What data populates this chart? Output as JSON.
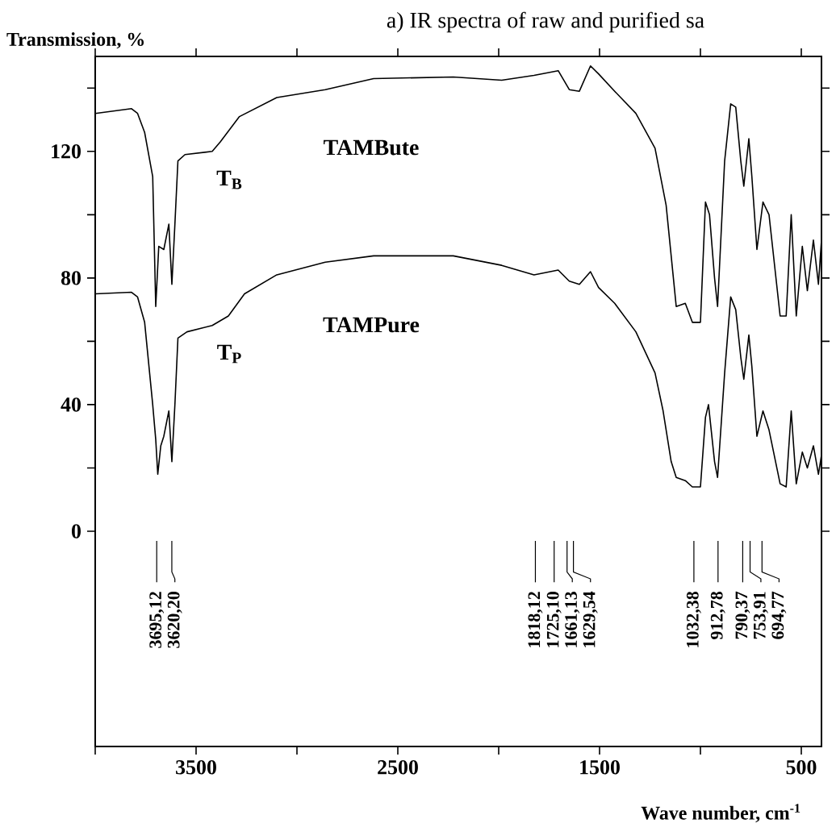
{
  "chart_data": {
    "type": "line",
    "title": "a) IR spectra of raw and purified sa",
    "ylabel": "Transmission, %",
    "xlabel": "Wave number, cm$^{-1}$",
    "xlim": [
      4000,
      400
    ],
    "ylim": [
      -68,
      150
    ],
    "xticks": [
      {
        "value": 4000,
        "label": null
      },
      3500,
      {
        "value": 3000,
        "label": null
      },
      2500,
      {
        "value": 2000,
        "label": null
      },
      1500,
      {
        "value": 1000,
        "label": null
      },
      500
    ],
    "yticks": [
      0,
      {
        "value": 20,
        "label": null
      },
      40,
      {
        "value": 60,
        "label": null
      },
      80,
      {
        "value": 100,
        "label": null
      },
      120,
      {
        "value": 140,
        "label": null
      }
    ],
    "series": [
      {
        "name": "TAMBute",
        "color": "#000000",
        "x": [
          4000,
          3820,
          3790,
          3755,
          3715,
          3700,
          3685,
          3660,
          3635,
          3620,
          3605,
          3590,
          3555,
          3420,
          3380,
          3285,
          3100,
          2860,
          2620,
          2225,
          1985,
          1825,
          1705,
          1650,
          1600,
          1545,
          1505,
          1425,
          1320,
          1225,
          1170,
          1145,
          1120,
          1075,
          1040,
          1000,
          975,
          955,
          930,
          915,
          880,
          850,
          825,
          800,
          785,
          760,
          745,
          720,
          690,
          660,
          605,
          575,
          550,
          525,
          495,
          470,
          440,
          415,
          400
        ],
        "values": [
          132,
          133.5,
          132,
          126,
          112,
          71,
          90,
          89,
          97,
          78,
          97,
          117,
          119,
          120,
          123,
          131,
          137,
          139.5,
          143,
          143.5,
          142.5,
          144,
          145.5,
          139.5,
          139,
          147,
          144.5,
          139,
          132,
          121,
          103,
          87,
          71,
          72,
          66,
          66,
          104,
          100,
          80,
          71,
          117,
          135,
          134,
          117,
          109,
          124,
          112,
          89,
          104,
          100,
          68,
          68,
          100,
          68,
          90,
          76,
          92,
          78,
          92
        ]
      },
      {
        "name": "TAMPure",
        "color": "#000000",
        "x": [
          4000,
          3820,
          3790,
          3755,
          3715,
          3700,
          3690,
          3675,
          3660,
          3635,
          3620,
          3605,
          3590,
          3545,
          3420,
          3340,
          3260,
          3100,
          2860,
          2620,
          2225,
          1985,
          1825,
          1705,
          1650,
          1600,
          1545,
          1505,
          1425,
          1320,
          1225,
          1185,
          1145,
          1120,
          1075,
          1040,
          1000,
          975,
          960,
          930,
          915,
          880,
          850,
          825,
          800,
          785,
          760,
          745,
          720,
          690,
          660,
          605,
          575,
          550,
          525,
          495,
          470,
          440,
          415,
          400
        ],
        "values": [
          75,
          75.5,
          74,
          66,
          40,
          29,
          18,
          27,
          30,
          38,
          22,
          40,
          61,
          63,
          65,
          68,
          75,
          81,
          85,
          87,
          87,
          84,
          81,
          82.5,
          79,
          78,
          82,
          77,
          72,
          63,
          50,
          38,
          22,
          17,
          16,
          14,
          14,
          36,
          40,
          22,
          17,
          50,
          74,
          70,
          55,
          48,
          62,
          52,
          30,
          38,
          32,
          15,
          14,
          38,
          15,
          25,
          20,
          27,
          18,
          24
        ]
      }
    ],
    "annotations": [
      "T$_{B}$",
      "T$_{P}$"
    ],
    "ref_lines": [
      {
        "axis": "x",
        "value": 3695.12,
        "label": "3695,12"
      },
      {
        "axis": "x",
        "value": 3620.2,
        "label": "3620,20"
      },
      {
        "axis": "x",
        "value": 1818.12,
        "label": "1818,12"
      },
      {
        "axis": "x",
        "value": 1725.1,
        "label": "1725,10"
      },
      {
        "axis": "x",
        "value": 1661.13,
        "label": "1661,13"
      },
      {
        "axis": "x",
        "value": 1629.54,
        "label": "1629,54"
      },
      {
        "axis": "x",
        "value": 1032.38,
        "label": "1032,38"
      },
      {
        "axis": "x",
        "value": 912.78,
        "label": "912,78"
      },
      {
        "axis": "x",
        "value": 790.37,
        "label": "790,37"
      },
      {
        "axis": "x",
        "value": 753.91,
        "label": "753,91"
      },
      {
        "axis": "x",
        "value": 694.77,
        "label": "694,77"
      }
    ]
  }
}
